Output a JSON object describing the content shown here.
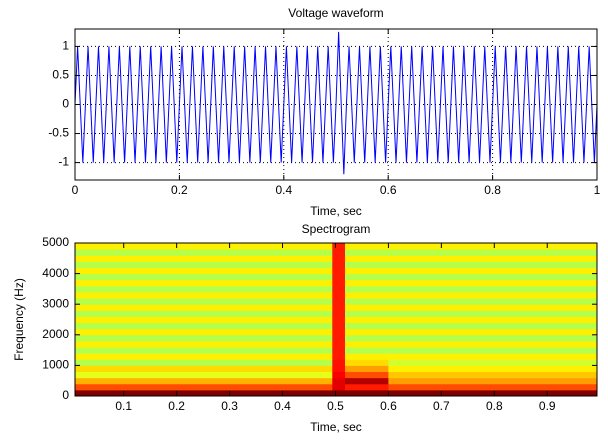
{
  "chart_data": [
    {
      "type": "line",
      "title": "Voltage waveform",
      "xlabel": "Time, sec",
      "color": "#0000ff",
      "grid": true,
      "xlim": [
        0,
        1
      ],
      "xticks": [
        0,
        0.2,
        0.4,
        0.6,
        0.8,
        1
      ],
      "ylim": [
        -1.3,
        1.3
      ],
      "yticks": [
        -1,
        -0.5,
        0,
        0.5,
        1
      ],
      "x": [
        0,
        0.005,
        0.01,
        0.015,
        0.02,
        0.025,
        0.03,
        0.035,
        0.04,
        0.045,
        0.05,
        0.055,
        0.06,
        0.065,
        0.07,
        0.075,
        0.08,
        0.085,
        0.09,
        0.095,
        0.1,
        0.105,
        0.11,
        0.115,
        0.12,
        0.125,
        0.13,
        0.135,
        0.14,
        0.145,
        0.15,
        0.155,
        0.16,
        0.165,
        0.17,
        0.175,
        0.18,
        0.185,
        0.19,
        0.195,
        0.2,
        0.205,
        0.21,
        0.215,
        0.22,
        0.225,
        0.23,
        0.235,
        0.24,
        0.245,
        0.25,
        0.255,
        0.26,
        0.265,
        0.27,
        0.275,
        0.28,
        0.285,
        0.29,
        0.295,
        0.3,
        0.305,
        0.31,
        0.315,
        0.32,
        0.325,
        0.33,
        0.335,
        0.34,
        0.345,
        0.35,
        0.355,
        0.36,
        0.365,
        0.37,
        0.375,
        0.38,
        0.385,
        0.39,
        0.395,
        0.4,
        0.405,
        0.41,
        0.415,
        0.42,
        0.425,
        0.43,
        0.435,
        0.44,
        0.445,
        0.45,
        0.455,
        0.46,
        0.465,
        0.47,
        0.475,
        0.48,
        0.485,
        0.49,
        0.495,
        0.5,
        0.505,
        0.51,
        0.515,
        0.52,
        0.525,
        0.53,
        0.535,
        0.54,
        0.545,
        0.55,
        0.555,
        0.56,
        0.565,
        0.57,
        0.575,
        0.58,
        0.585,
        0.59,
        0.595,
        0.6,
        0.605,
        0.61,
        0.615,
        0.62,
        0.625,
        0.63,
        0.635,
        0.64,
        0.645,
        0.65,
        0.655,
        0.66,
        0.665,
        0.67,
        0.675,
        0.68,
        0.685,
        0.69,
        0.695,
        0.7,
        0.705,
        0.71,
        0.715,
        0.72,
        0.725,
        0.73,
        0.735,
        0.74,
        0.745,
        0.75,
        0.755,
        0.76,
        0.765,
        0.77,
        0.775,
        0.78,
        0.785,
        0.79,
        0.795,
        0.8,
        0.805,
        0.81,
        0.815,
        0.82,
        0.825,
        0.83,
        0.835,
        0.84,
        0.845,
        0.85,
        0.855,
        0.86,
        0.865,
        0.87,
        0.875,
        0.88,
        0.885,
        0.89,
        0.895,
        0.9,
        0.905,
        0.91,
        0.915,
        0.92,
        0.925,
        0.93,
        0.935,
        0.94,
        0.945,
        0.95,
        0.955,
        0.96,
        0.965,
        0.97,
        0.975,
        0.98,
        0.985,
        0.99,
        0.995,
        1
      ],
      "values": [
        0,
        1,
        0,
        -1,
        0,
        1,
        0,
        -1,
        0,
        1,
        0,
        -1,
        0,
        1,
        0,
        -1,
        0,
        1,
        0,
        -1,
        0,
        1,
        0,
        -1,
        0,
        1,
        0,
        -1,
        0,
        1,
        0,
        -1,
        0,
        1,
        0,
        -1,
        0,
        1,
        0,
        -1,
        0,
        1,
        0,
        -1,
        0,
        1,
        0,
        -1,
        0,
        1,
        0,
        -1,
        0,
        1,
        0,
        -1,
        0,
        1,
        0,
        -1,
        0,
        1,
        0,
        -1,
        0,
        1,
        0,
        -1,
        0,
        1,
        0,
        -1,
        0,
        1,
        0,
        -1,
        0,
        1,
        0,
        -1,
        0,
        1,
        0,
        -1,
        0,
        1,
        0,
        -1,
        0,
        1,
        0,
        -1,
        0,
        1,
        0,
        -1,
        0,
        1,
        0,
        -1,
        0,
        1.25,
        0,
        -1.2,
        0,
        1,
        0,
        -1,
        0,
        1,
        0,
        -1,
        0,
        1,
        0,
        -1,
        0,
        1,
        0,
        -1,
        0,
        1,
        0,
        -1,
        0,
        1,
        0,
        -1,
        0,
        1,
        0,
        -1,
        0,
        1,
        0,
        -1,
        0,
        1,
        0,
        -1,
        0,
        1,
        0,
        -1,
        0,
        1,
        0,
        -1,
        0,
        1,
        0,
        -1,
        0,
        1,
        0,
        -1,
        0,
        1,
        0,
        -1,
        0,
        1,
        0,
        -1,
        0,
        1,
        0,
        -1,
        0,
        1,
        0,
        -1,
        0,
        1,
        0,
        -1,
        0,
        1,
        0,
        -1,
        0,
        1,
        0,
        -1,
        0,
        1,
        0,
        -1,
        0,
        1,
        0,
        -1,
        0,
        1,
        0,
        -1,
        0,
        1,
        0,
        -1,
        0
      ]
    },
    {
      "type": "heatmap",
      "title": "Spectrogram",
      "xlabel": "Time, sec",
      "ylabel": "Frequency (Hz)",
      "colormap": "jet",
      "grid": false,
      "xlim": [
        0.008,
        0.994
      ],
      "xticks": [
        0.1,
        0.2,
        0.3,
        0.4,
        0.5,
        0.6,
        0.7,
        0.8,
        0.9
      ],
      "ylim": [
        0,
        5000
      ],
      "yticks": [
        0,
        1000,
        2000,
        3000,
        4000,
        5000
      ],
      "xbins": [
        0.008,
        0.494,
        0.518,
        0.6,
        0.994
      ],
      "ybins": [
        0,
        200,
        400,
        600,
        800,
        1000,
        1200,
        1400,
        1600,
        1800,
        2000,
        2200,
        2400,
        2600,
        2800,
        3000,
        3200,
        3400,
        3600,
        3800,
        4000,
        4200,
        4400,
        4600,
        4800,
        5000
      ],
      "z": [
        [
          1,
          1,
          1,
          1
        ],
        [
          0.8,
          0.9,
          0.85,
          0.8
        ],
        [
          0.7,
          0.9,
          0.95,
          0.72
        ],
        [
          0.6,
          0.88,
          0.8,
          0.68
        ],
        [
          0.66,
          0.86,
          0.72,
          0.64
        ],
        [
          0.55,
          0.86,
          0.66,
          0.58
        ],
        [
          0.64,
          0.85,
          0.64,
          0.64
        ],
        [
          0.55,
          0.85,
          0.55,
          0.55
        ],
        [
          0.64,
          0.85,
          0.64,
          0.64
        ],
        [
          0.55,
          0.85,
          0.55,
          0.55
        ],
        [
          0.64,
          0.85,
          0.64,
          0.64
        ],
        [
          0.55,
          0.85,
          0.55,
          0.55
        ],
        [
          0.64,
          0.85,
          0.64,
          0.64
        ],
        [
          0.55,
          0.85,
          0.55,
          0.55
        ],
        [
          0.64,
          0.85,
          0.64,
          0.64
        ],
        [
          0.55,
          0.85,
          0.55,
          0.55
        ],
        [
          0.64,
          0.85,
          0.64,
          0.64
        ],
        [
          0.55,
          0.85,
          0.55,
          0.55
        ],
        [
          0.64,
          0.85,
          0.64,
          0.64
        ],
        [
          0.55,
          0.85,
          0.55,
          0.55
        ],
        [
          0.64,
          0.85,
          0.64,
          0.64
        ],
        [
          0.55,
          0.85,
          0.55,
          0.55
        ],
        [
          0.64,
          0.85,
          0.64,
          0.64
        ],
        [
          0.55,
          0.85,
          0.55,
          0.55
        ],
        [
          0.64,
          0.85,
          0.64,
          0.64
        ]
      ]
    }
  ]
}
